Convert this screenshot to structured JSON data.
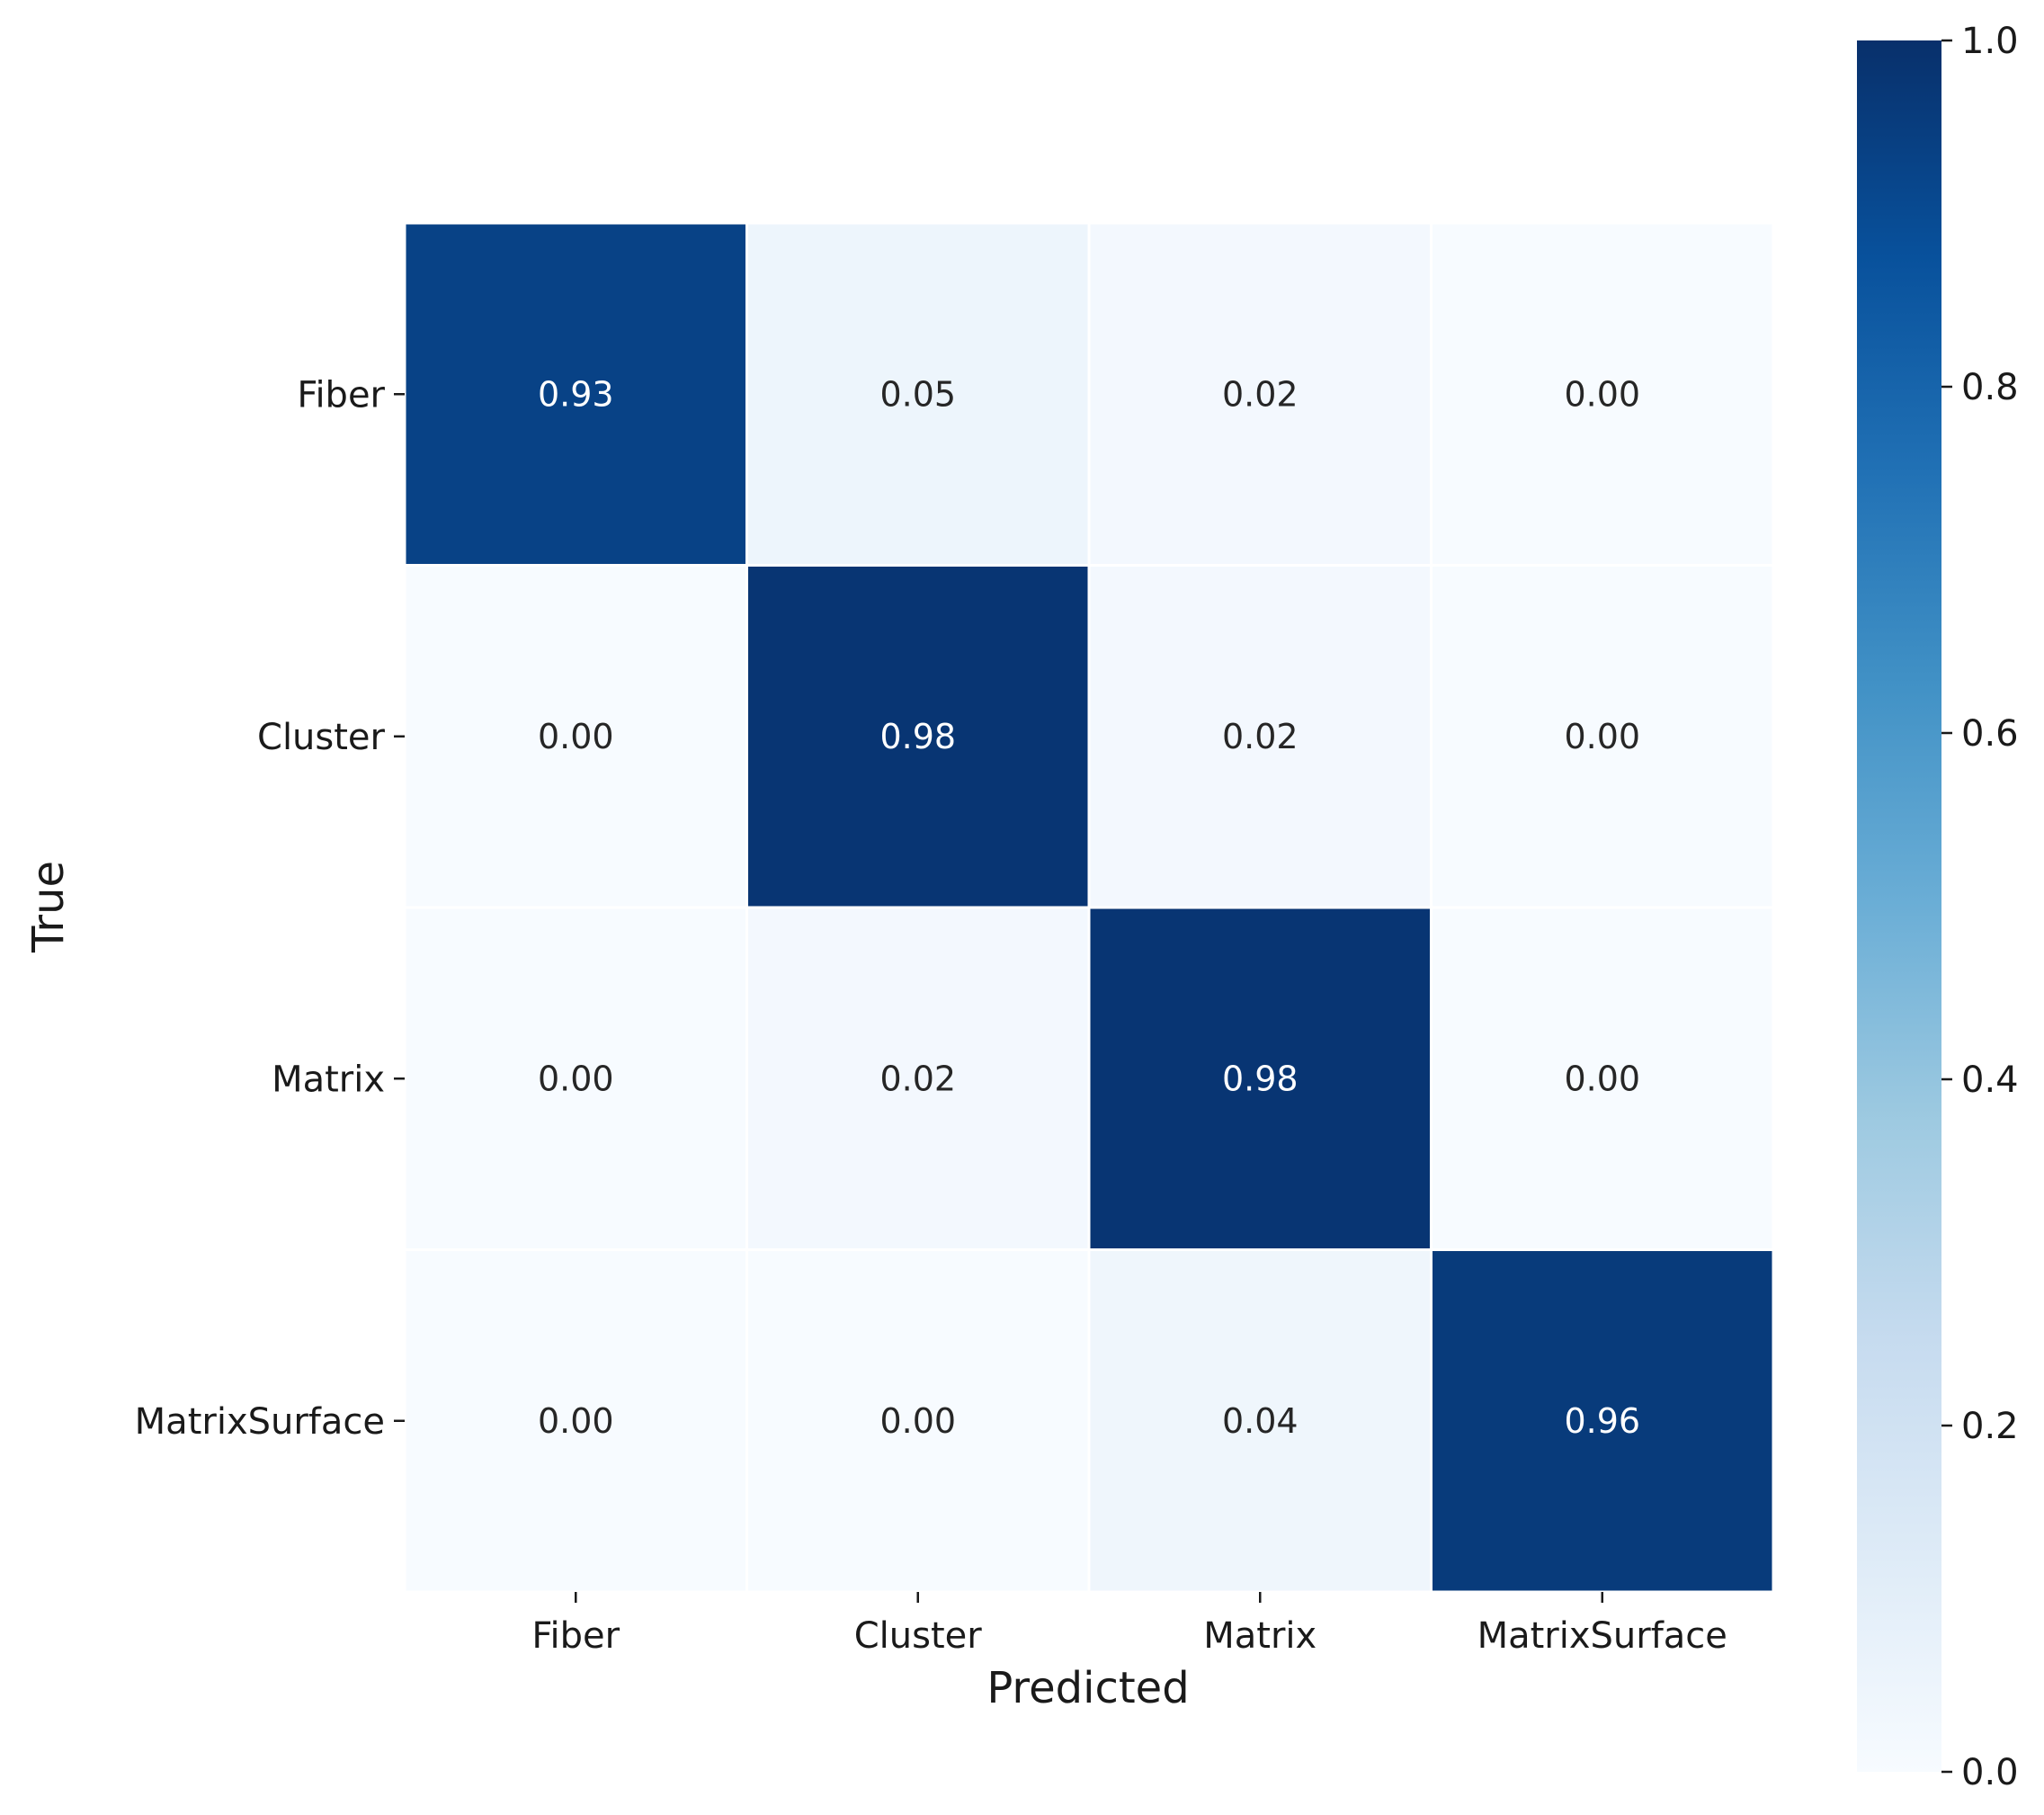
{
  "chart_data": {
    "type": "heatmap",
    "title": "",
    "xlabel": "Predicted",
    "ylabel": "True",
    "x_categories": [
      "Fiber",
      "Cluster",
      "Matrix",
      "MatrixSurface"
    ],
    "y_categories": [
      "Fiber",
      "Cluster",
      "Matrix",
      "MatrixSurface"
    ],
    "values": [
      [
        0.93,
        0.05,
        0.02,
        0.0
      ],
      [
        0.0,
        0.98,
        0.02,
        0.0
      ],
      [
        0.0,
        0.02,
        0.98,
        0.0
      ],
      [
        0.0,
        0.0,
        0.04,
        0.96
      ]
    ],
    "value_format": "0.00",
    "colormap": "Blues",
    "colormap_stops": [
      "#f7fbff",
      "#deebf7",
      "#c6dbef",
      "#9ecae1",
      "#6baed6",
      "#4292c6",
      "#2171b5",
      "#08519c",
      "#08306b"
    ],
    "vmin": 0.0,
    "vmax": 1.0,
    "colorbar": {
      "ticks": [
        0.0,
        0.2,
        0.4,
        0.6,
        0.8,
        1.0
      ],
      "tick_labels": [
        "0.0",
        "0.2",
        "0.4",
        "0.6",
        "0.8",
        "1.0"
      ]
    },
    "cell_border_color": "#ffffff",
    "light_text_color": "#ffffff",
    "dark_text_color": "#262626"
  }
}
